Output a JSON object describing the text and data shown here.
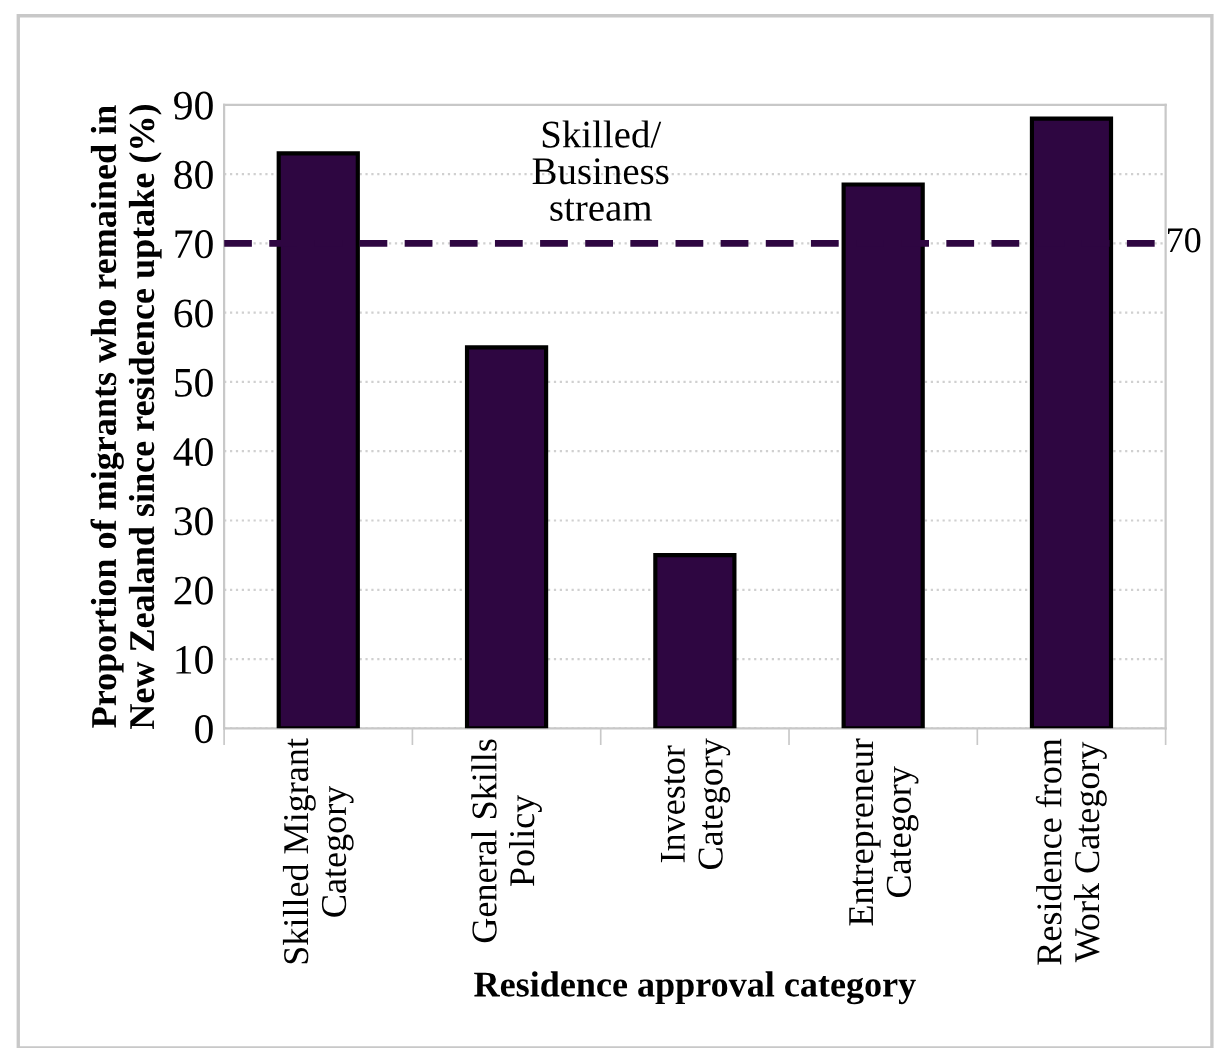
{
  "chart_data": {
    "type": "bar",
    "categories": [
      "Skilled Migrant\nCategory",
      "General Skills\nPolicy",
      "Investor\nCategory",
      "Entrepreneur\nCategory",
      "Residence from\nWork Category"
    ],
    "values": [
      83,
      55,
      25,
      78.5,
      88
    ],
    "color": "#2e0641",
    "xlabel": "Residence approval category",
    "ylabel": "Proportion of migrants who remained in\nNew Zealand since residence uptake (%)",
    "ylim": [
      0,
      90
    ],
    "yticks": [
      0,
      10,
      20,
      30,
      40,
      50,
      60,
      70,
      80,
      90
    ],
    "grid": "y",
    "ref_lines": [
      {
        "axis": "y",
        "value": 70,
        "label": "70",
        "color": "#2e0641",
        "line_style": "dashed"
      }
    ],
    "annotations": [
      "Skilled/\nBusiness\nstream"
    ]
  }
}
